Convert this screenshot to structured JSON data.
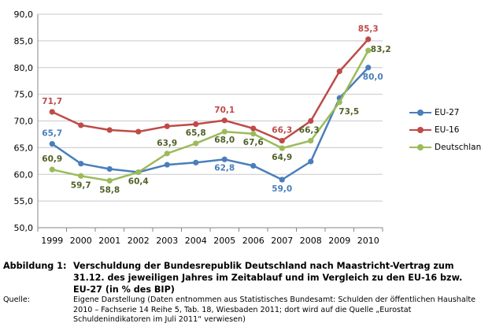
{
  "chart_data": {
    "type": "line",
    "categories": [
      "1999",
      "2000",
      "2001",
      "2002",
      "2003",
      "2004",
      "2005",
      "2006",
      "2007",
      "2008",
      "2009",
      "2010"
    ],
    "ylim": [
      50,
      90
    ],
    "yticks": [
      "50,0",
      "55,0",
      "60,0",
      "65,0",
      "70,0",
      "75,0",
      "80,0",
      "85,0",
      "90,0"
    ],
    "grid": true,
    "legend_position": "right",
    "series": [
      {
        "name": "EU-27",
        "color": "#4a7ebb",
        "values": [
          65.7,
          62.0,
          61.0,
          60.4,
          61.8,
          62.2,
          62.8,
          61.6,
          59.0,
          62.4,
          74.3,
          80.0
        ],
        "labels": {
          "0": "65,7",
          "6": "62,8",
          "8": "59,0",
          "11": "80,0"
        }
      },
      {
        "name": "EU-16",
        "color": "#be4b48",
        "values": [
          71.7,
          69.2,
          68.3,
          68.0,
          69.0,
          69.4,
          70.1,
          68.6,
          66.3,
          70.0,
          79.3,
          85.3
        ],
        "labels": {
          "0": "71,7",
          "6": "70,1",
          "8": "66,3",
          "11": "85,3"
        }
      },
      {
        "name": "Deutschland",
        "color": "#9bbb59",
        "values": [
          60.9,
          59.7,
          58.8,
          60.4,
          63.9,
          65.8,
          68.0,
          67.6,
          64.9,
          66.3,
          73.5,
          83.2
        ],
        "labels": {
          "0": "60,9",
          "1": "59,7",
          "2": "58,8",
          "3": "60,4",
          "4": "63,9",
          "5": "65,8",
          "6": "68,0",
          "7": "67,6",
          "8": "64,9",
          "9": "66,3",
          "10": "73,5",
          "11": "83,2"
        }
      }
    ]
  },
  "caption": {
    "label": "Abbildung 1:",
    "text": "Verschuldung der Bundesrepublik Deutschland nach Maastricht-Vertrag zum 31.12. des jeweiligen Jahres im Zeitablauf und im Vergleich zu den EU-16 bzw. EU-27 (in % des BIP)"
  },
  "source": {
    "label": "Quelle:",
    "text": "Eigene Darstellung (Daten entnommen aus Statistisches Bundesamt: Schulden der öffentlichen Haushalte 2010 – Fachserie 14 Reihe 5, Tab. 18, Wiesbaden 2011; dort wird auf die Quelle „Eurostat Schuldenindikatoren im Juli 2011“ verwiesen)"
  }
}
